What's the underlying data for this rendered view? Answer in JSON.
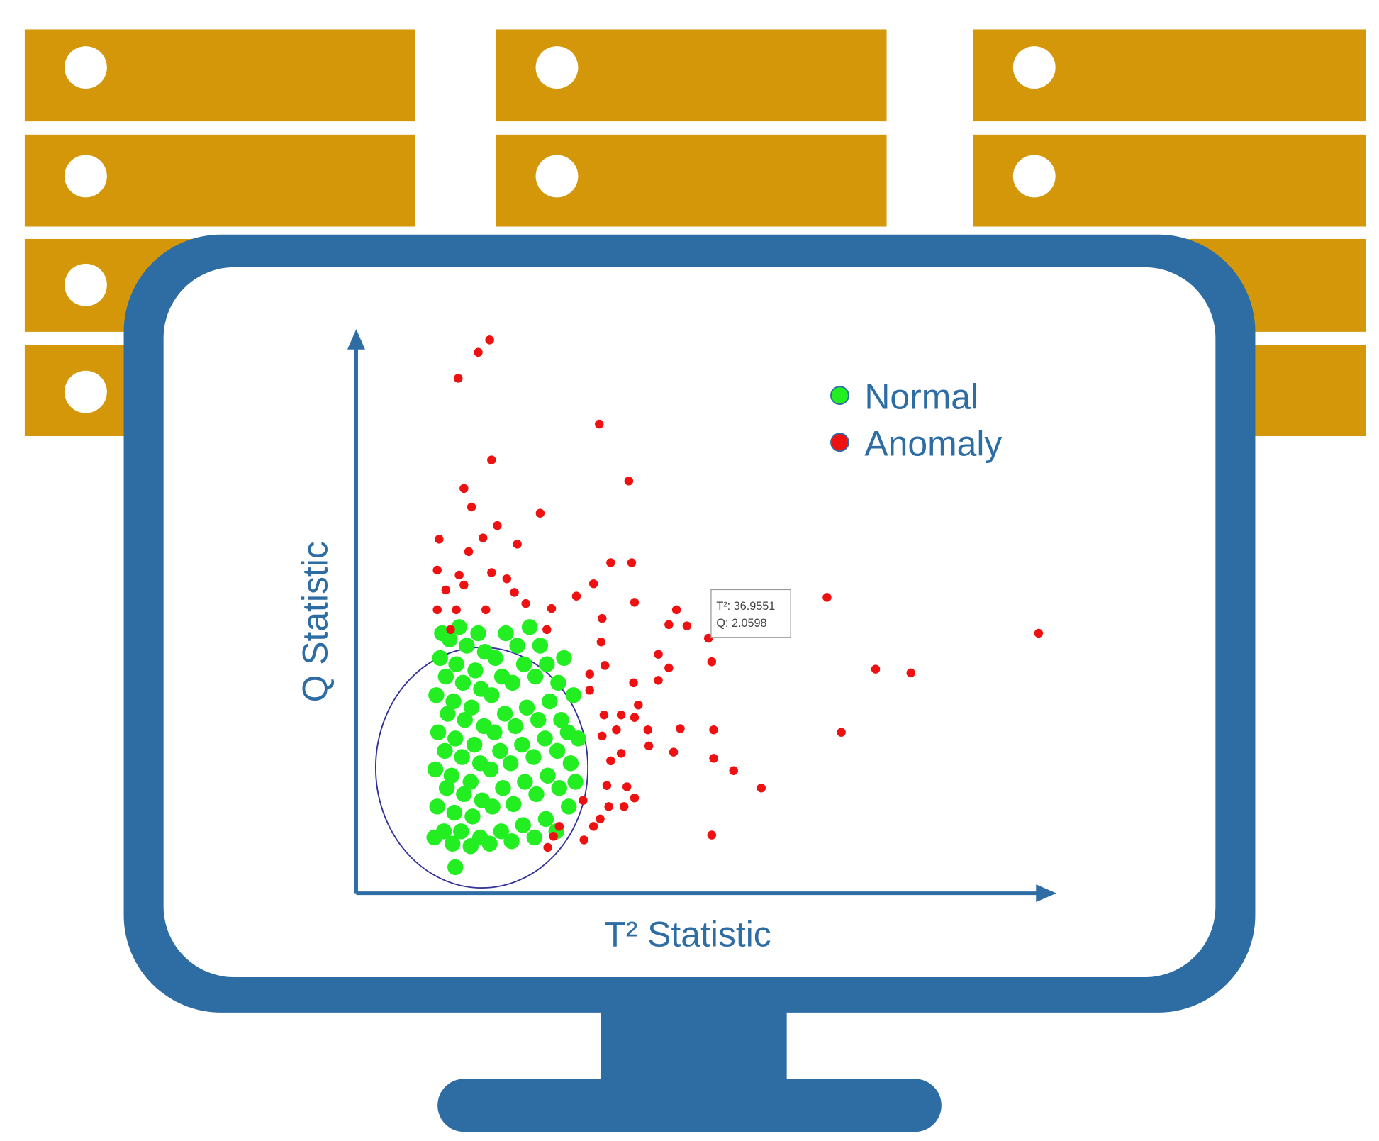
{
  "chart_data": {
    "type": "scatter",
    "x_label": "T² Statistic",
    "y_label": "Q Statistic",
    "xlim": [
      0,
      73
    ],
    "ylim": [
      0,
      4.5
    ],
    "tooltip": {
      "labels": [
        "T²:",
        "Q:"
      ],
      "series": 1,
      "index": 38
    },
    "series": [
      {
        "name": "Normal",
        "color": "#22ee22",
        "x": [
          8.2,
          8.5,
          8.3,
          8.6,
          8.4,
          8.8,
          9.0,
          9.2,
          9.5,
          9.3,
          9.6,
          9.4,
          9.8,
          10.1,
          10.3,
          10.0,
          10.4,
          10.2,
          10.5,
          10.8,
          10.4,
          11.0,
          11.3,
          11.1,
          11.4,
          11.2,
          11.6,
          12.0,
          12.2,
          12.0,
          12.4,
          12.1,
          12.5,
          12.8,
          13.0,
          13.2,
          13.0,
          13.4,
          13.1,
          13.5,
          14.0,
          14.3,
          14.1,
          14.5,
          14.2,
          14.6,
          15.2,
          15.4,
          15.1,
          15.6,
          15.3,
          15.7,
          16.3,
          16.5,
          16.2,
          16.7,
          16.4,
          16.9,
          17.5,
          17.7,
          17.4,
          17.9,
          17.6,
          18.2,
          18.7,
          18.9,
          18.6,
          19.1,
          18.8,
          19.3,
          19.9,
          20.1,
          19.8,
          20.3,
          20.0,
          21.0,
          21.3,
          21.1,
          21.5,
          21.2,
          21.8,
          22.3,
          22.5,
          22.2,
          22.8,
          23.3,
          23.0
        ],
        "values": [
          0.45,
          0.7,
          1.0,
          1.3,
          1.6,
          1.9,
          2.1,
          0.5,
          0.85,
          1.15,
          1.45,
          1.75,
          2.05,
          0.4,
          0.65,
          0.95,
          1.25,
          1.55,
          1.85,
          2.15,
          0.21,
          0.5,
          0.8,
          1.1,
          1.4,
          1.7,
          2.0,
          0.38,
          0.62,
          0.9,
          1.2,
          1.5,
          1.8,
          2.1,
          0.45,
          0.75,
          1.05,
          1.35,
          1.65,
          1.95,
          0.4,
          0.7,
          1.0,
          1.3,
          1.6,
          1.9,
          0.5,
          0.85,
          1.15,
          1.45,
          1.75,
          2.1,
          0.42,
          0.72,
          1.05,
          1.35,
          1.7,
          2.0,
          0.55,
          0.9,
          1.2,
          1.5,
          1.85,
          2.15,
          0.45,
          0.8,
          1.1,
          1.4,
          1.75,
          2.0,
          0.6,
          0.95,
          1.25,
          1.55,
          1.85,
          0.5,
          0.85,
          1.15,
          1.4,
          1.7,
          1.9,
          0.7,
          1.05,
          1.3,
          1.6,
          1.25,
          0.9
        ]
      },
      {
        "name": "Anomaly",
        "color": "#ee1111",
        "x": [
          14.0,
          12.8,
          10.7,
          25.5,
          14.2,
          28.6,
          11.3,
          12.1,
          19.3,
          14.8,
          8.7,
          13.3,
          16.9,
          11.8,
          26.7,
          28.9,
          8.5,
          10.8,
          14.2,
          15.8,
          24.9,
          9.4,
          11.3,
          16.6,
          23.1,
          49.4,
          29.2,
          8.5,
          10.5,
          13.6,
          17.8,
          20.5,
          33.6,
          25.8,
          9.9,
          20.0,
          32.8,
          34.7,
          36.9551,
          71.6,
          25.7,
          31.7,
          32.8,
          37.3,
          26.1,
          54.5,
          58.2,
          24.5,
          29.1,
          31.7,
          24.5,
          29.6,
          26.0,
          27.8,
          29.2,
          50.9,
          34.0,
          37.5,
          27.3,
          30.6,
          25.8,
          30.7,
          33.3,
          37.5,
          27.8,
          26.7,
          39.6,
          42.5,
          26.3,
          28.4,
          29.2,
          23.8,
          26.5,
          28.1,
          25.6,
          24.9,
          21.3,
          20.7,
          23.9,
          37.3,
          20.1
        ],
        "values": [
          4.47,
          4.37,
          4.16,
          3.79,
          3.5,
          3.33,
          3.27,
          3.12,
          3.07,
          2.97,
          2.86,
          2.87,
          2.82,
          2.76,
          2.67,
          2.67,
          2.61,
          2.57,
          2.59,
          2.54,
          2.5,
          2.45,
          2.49,
          2.43,
          2.4,
          2.39,
          2.35,
          2.29,
          2.29,
          2.29,
          2.34,
          2.3,
          2.29,
          2.22,
          2.13,
          2.13,
          2.17,
          2.16,
          2.0598,
          2.1,
          2.03,
          1.93,
          1.82,
          1.87,
          1.84,
          1.81,
          1.78,
          1.77,
          1.7,
          1.72,
          1.64,
          1.52,
          1.44,
          1.44,
          1.42,
          1.3,
          1.33,
          1.32,
          1.32,
          1.32,
          1.27,
          1.19,
          1.14,
          1.09,
          1.13,
          1.07,
          0.99,
          0.85,
          0.87,
          0.86,
          0.77,
          0.75,
          0.7,
          0.7,
          0.6,
          0.54,
          0.54,
          0.46,
          0.43,
          0.47,
          0.37
        ]
      }
    ]
  }
}
